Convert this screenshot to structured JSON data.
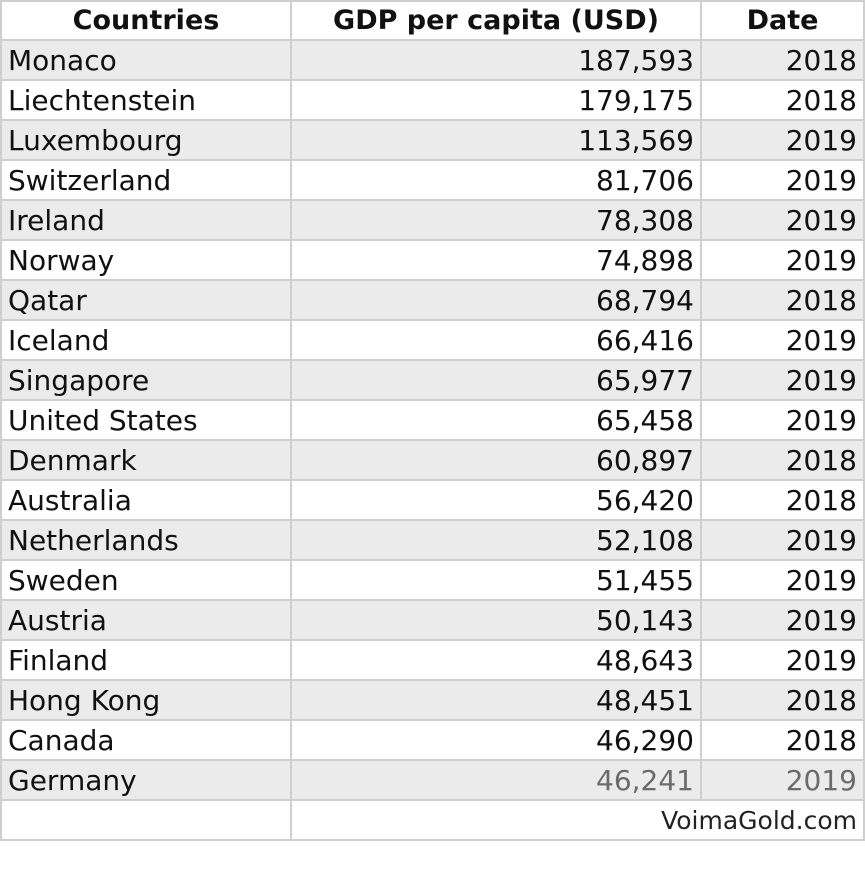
{
  "chart_data": {
    "type": "table",
    "columns": [
      "Countries",
      "GDP per capita (USD)",
      "Date"
    ],
    "rows": [
      {
        "country": "Monaco",
        "gdp": "187,593",
        "date": "2018"
      },
      {
        "country": "Liechtenstein",
        "gdp": "179,175",
        "date": "2018"
      },
      {
        "country": "Luxembourg",
        "gdp": "113,569",
        "date": "2019"
      },
      {
        "country": "Switzerland",
        "gdp": "81,706",
        "date": "2019"
      },
      {
        "country": "Ireland",
        "gdp": "78,308",
        "date": "2019"
      },
      {
        "country": "Norway",
        "gdp": "74,898",
        "date": "2019"
      },
      {
        "country": "Qatar",
        "gdp": "68,794",
        "date": "2018"
      },
      {
        "country": "Iceland",
        "gdp": "66,416",
        "date": "2019"
      },
      {
        "country": "Singapore",
        "gdp": "65,977",
        "date": "2019"
      },
      {
        "country": "United States",
        "gdp": "65,458",
        "date": "2019"
      },
      {
        "country": "Denmark",
        "gdp": "60,897",
        "date": "2018"
      },
      {
        "country": "Australia",
        "gdp": "56,420",
        "date": "2018"
      },
      {
        "country": "Netherlands",
        "gdp": "52,108",
        "date": "2019"
      },
      {
        "country": "Sweden",
        "gdp": "51,455",
        "date": "2019"
      },
      {
        "country": "Austria",
        "gdp": "50,143",
        "date": "2019"
      },
      {
        "country": "Finland",
        "gdp": "48,643",
        "date": "2019"
      },
      {
        "country": "Hong Kong",
        "gdp": "48,451",
        "date": "2018"
      },
      {
        "country": "Canada",
        "gdp": "46,290",
        "date": "2018"
      },
      {
        "country": "Germany",
        "gdp": "46,241",
        "date": "2019"
      }
    ],
    "source": "VoimaGold.com",
    "colors": {
      "row_shade": "#ebebeb",
      "grid": "#cfcfcf",
      "text": "#111111",
      "faded_text": "#6b6b6b"
    }
  }
}
